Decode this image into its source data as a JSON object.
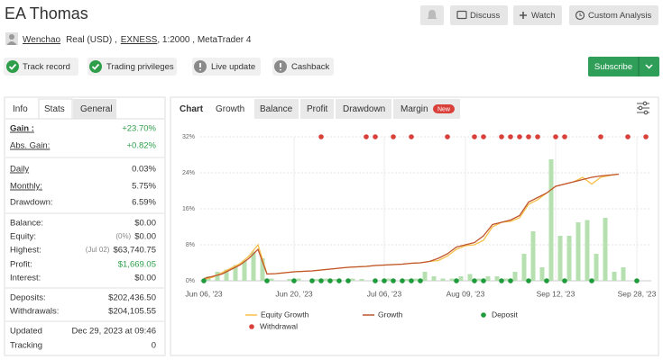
{
  "header": {
    "title": "EA Thomas",
    "buttons": [
      "Discuss",
      "Watch",
      "Custom Analysis"
    ]
  },
  "account": {
    "user": "Wenchao",
    "type": "Real (USD) ,",
    "broker": "EXNESS",
    "details": ", 1:2000 , MetaTrader 4"
  },
  "badges": [
    "Track record",
    "Trading privileges",
    "Live update",
    "Cashback"
  ],
  "subscribe": "Subscribe",
  "stats": {
    "tabs": [
      "Info",
      "Stats",
      "General"
    ],
    "groups": [
      [
        {
          "label": "Gain :",
          "value": "+23.70%",
          "color": "#2e9e4a",
          "underline": true,
          "bold": true
        },
        {
          "label": "Abs. Gain:",
          "value": "+0.82%",
          "color": "#2e9e4a",
          "underline": true
        }
      ],
      [
        {
          "label": "Daily",
          "value": "0.03%",
          "underline": true
        },
        {
          "label": "Monthly:",
          "value": "5.75%",
          "underline": true
        },
        {
          "label": "Drawdown:",
          "value": "6.59%"
        }
      ],
      [
        {
          "label": "Balance:",
          "value": "$0.00"
        },
        {
          "label": "Equity:",
          "note": "(0%)",
          "value": "$0.00"
        },
        {
          "label": "Highest:",
          "note": "(Jul 02)",
          "value": "$63,740.75"
        },
        {
          "label": "Profit:",
          "value": "$1,669.05",
          "color": "#2e9e4a"
        },
        {
          "label": "Interest:",
          "value": "$0.00"
        }
      ],
      [
        {
          "label": "Deposits:",
          "value": "$202,436.50"
        },
        {
          "label": "Withdrawals:",
          "value": "$204,105.55"
        }
      ],
      [
        {
          "label": "Updated",
          "value": "Dec 29, 2023 at 09:46"
        },
        {
          "label": "Tracking",
          "value": "0"
        }
      ]
    ]
  },
  "chart_tabs": [
    "Chart",
    "Growth",
    "Balance",
    "Profit",
    "Drawdown",
    "Margin"
  ],
  "new_badge": "New",
  "chart_data": {
    "type": "line",
    "categories": [
      "Jun 06, '23",
      null,
      null,
      null,
      null,
      null,
      null,
      null,
      null,
      null,
      "Jun 20, '23",
      null,
      null,
      null,
      null,
      null,
      null,
      null,
      null,
      null,
      "Jul 06, '23",
      null,
      null,
      null,
      null,
      null,
      null,
      null,
      null,
      "Aug 09, '23",
      null,
      null,
      null,
      null,
      null,
      null,
      null,
      null,
      null,
      "Sep 12, '23",
      null,
      null,
      null,
      null,
      null,
      null,
      null,
      null,
      "Sep 28, '23",
      null
    ],
    "series": [
      {
        "name": "Equity Growth",
        "style": "line",
        "color": "#f5c04a",
        "values": [
          0.3,
          0.8,
          1.8,
          2.8,
          3.8,
          5.5,
          8,
          1.5,
          1.6,
          1.8,
          2,
          2.1,
          2.2,
          2.4,
          2.6,
          2.8,
          3,
          3.1,
          3.2,
          3.4,
          3.5,
          3.6,
          3.7,
          3.9,
          4,
          4.3,
          4.5,
          5.5,
          7,
          7.8,
          8,
          9,
          12,
          13,
          13.2,
          14,
          17,
          18,
          19.5,
          21,
          21.5,
          22,
          23,
          21.5,
          23,
          23.4,
          23.7,
          null,
          null,
          null
        ]
      },
      {
        "name": "Growth",
        "style": "line",
        "color": "#c0552d",
        "values": [
          0.5,
          1,
          1.5,
          2.5,
          3.5,
          5,
          7,
          1.5,
          1.6,
          1.8,
          2,
          2.1,
          2.2,
          2.4,
          2.6,
          2.8,
          3,
          3.1,
          3.2,
          3.4,
          3.5,
          3.6,
          3.7,
          3.9,
          4,
          4.3,
          5,
          6,
          7.5,
          8,
          8.5,
          10,
          12.5,
          13,
          13.5,
          14.5,
          17.5,
          18.5,
          19.5,
          21,
          21.5,
          22,
          22.5,
          23,
          23.3,
          23.5,
          23.7,
          null,
          null,
          null
        ]
      },
      {
        "name": "Deposit",
        "style": "dot",
        "color": "#1f9a3c",
        "values": [
          0,
          null,
          null,
          null,
          null,
          null,
          null,
          0,
          null,
          null,
          0,
          null,
          0,
          0,
          0,
          0,
          0,
          null,
          null,
          0,
          0,
          0,
          0,
          0,
          0,
          null,
          null,
          null,
          0,
          null,
          0,
          0,
          null,
          0,
          0,
          null,
          0,
          null,
          0,
          null,
          0,
          null,
          null,
          0,
          null,
          null,
          null,
          null,
          0,
          null
        ]
      },
      {
        "name": "Withdrawal",
        "style": "dot",
        "color": "#d9403a",
        "values": [
          null,
          null,
          null,
          null,
          null,
          null,
          null,
          null,
          null,
          null,
          null,
          null,
          null,
          32,
          null,
          null,
          null,
          null,
          32,
          32,
          null,
          32,
          null,
          32,
          null,
          null,
          null,
          32,
          null,
          null,
          32,
          32,
          null,
          32,
          32,
          32,
          32,
          32,
          null,
          32,
          32,
          null,
          null,
          null,
          32,
          null,
          null,
          32,
          null,
          32
        ]
      }
    ],
    "bars": {
      "color": "#b7e0b1",
      "values": [
        1,
        2,
        2.5,
        3.5,
        4.5,
        6.5,
        5,
        0.5,
        null,
        0.4,
        0.5,
        null,
        0.4,
        0.5,
        0.4,
        null,
        0.5,
        0.4,
        null,
        null,
        0.5,
        null,
        0.4,
        0.5,
        2,
        1,
        0.5,
        0.5,
        1,
        1.5,
        0.5,
        1,
        1,
        0.5,
        2,
        6,
        11,
        3,
        27,
        10,
        10,
        13,
        13.5,
        6,
        14,
        2,
        3,
        null,
        null,
        null
      ]
    },
    "ylim": [
      0,
      32
    ],
    "yticks": [
      {
        "value": 0,
        "label": "0%"
      },
      {
        "value": 8,
        "label": "8%"
      },
      {
        "value": 16,
        "label": "16%"
      },
      {
        "value": 24,
        "label": "24%"
      },
      {
        "value": 32,
        "label": "32%"
      }
    ],
    "grid": true
  }
}
